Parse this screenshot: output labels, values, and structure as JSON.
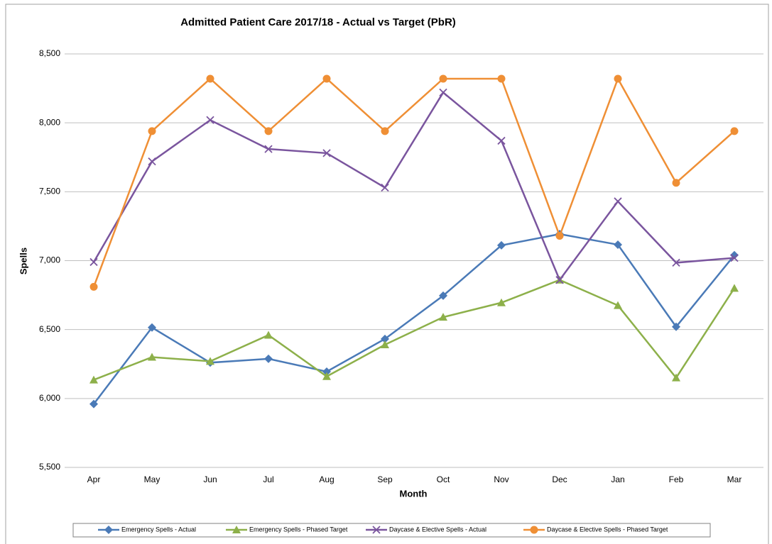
{
  "chart_data": {
    "type": "line",
    "title": "Admitted Patient Care 2017/18 - Actual vs Target (PbR)",
    "x_label": "Month",
    "y_label": "Spells",
    "categories": [
      "Apr",
      "May",
      "Jun",
      "Jul",
      "Aug",
      "Sep",
      "Oct",
      "Nov",
      "Dec",
      "Jan",
      "Feb",
      "Mar"
    ],
    "ylim": [
      5500,
      8500
    ],
    "yticks": [
      {
        "value": 5500,
        "label": "5,500"
      },
      {
        "value": 6000,
        "label": "6,000"
      },
      {
        "value": 6500,
        "label": "6,500"
      },
      {
        "value": 7000,
        "label": "7,000"
      },
      {
        "value": 7500,
        "label": "7,500"
      },
      {
        "value": 8000,
        "label": "8,000"
      },
      {
        "value": 8500,
        "label": "8,500"
      }
    ],
    "grid": true,
    "legend_position": "bottom",
    "series": [
      {
        "name": "Emergency Spells - Actual",
        "color": "#4a7ab7",
        "marker": "diamond",
        "values": [
          5960,
          6515,
          6260,
          6288,
          6195,
          6432,
          6746,
          7111,
          7193,
          7116,
          6520,
          7040
        ]
      },
      {
        "name": "Emergency Spells - Phased Target",
        "color": "#8db04a",
        "marker": "triangle",
        "values": [
          6135,
          6300,
          6270,
          6460,
          6160,
          6390,
          6590,
          6695,
          6860,
          6675,
          6150,
          6800
        ]
      },
      {
        "name": "Daycase & Elective Spells - Actual",
        "color": "#7a559e",
        "marker": "cross",
        "values": [
          6990,
          7720,
          8020,
          7810,
          7780,
          7530,
          8220,
          7870,
          6860,
          7430,
          6985,
          7020
        ]
      },
      {
        "name": "Daycase & Elective Spells - Phased Target",
        "color": "#ef8f35",
        "marker": "circle",
        "values": [
          6810,
          7940,
          8320,
          7940,
          8320,
          7940,
          8320,
          8320,
          7180,
          8320,
          7565,
          7940
        ]
      }
    ]
  }
}
